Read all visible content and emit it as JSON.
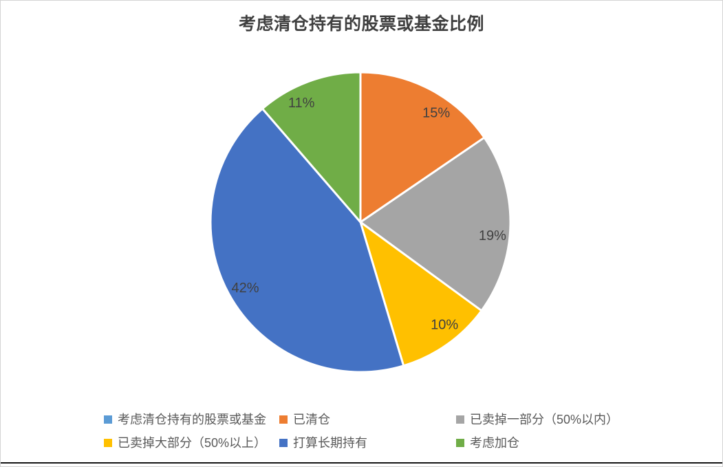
{
  "chart_data": {
    "type": "pie",
    "title": "考虑清仓持有的股票或基金比例",
    "series_name": "考虑清仓持有的股票或基金",
    "unit": "percent",
    "direction": "clockwise",
    "start_angle_deg": 0,
    "slices": [
      {
        "label": "已清仓",
        "value": 15,
        "display": "15%",
        "color": "#ED7D31"
      },
      {
        "label": "已卖掉一部分（50%以内）",
        "value": 19,
        "display": "19%",
        "color": "#A5A5A5"
      },
      {
        "label": "已卖掉大部分（50%以上）",
        "value": 10,
        "display": "10%",
        "color": "#FFC000"
      },
      {
        "label": "打算长期持有",
        "value": 42,
        "display": "42%",
        "color": "#4472C4"
      },
      {
        "label": "考虑加仓",
        "value": 11,
        "display": "11%",
        "color": "#70AD47"
      }
    ],
    "legend": {
      "position": "bottom",
      "items": [
        {
          "label": "考虑清仓持有的股票或基金",
          "color": "#5B9BD5"
        },
        {
          "label": "已清仓",
          "color": "#ED7D31"
        },
        {
          "label": "已卖掉一部分（50%以内）",
          "color": "#A5A5A5"
        },
        {
          "label": "已卖掉大部分（50%以上）",
          "color": "#FFC000"
        },
        {
          "label": "打算长期持有",
          "color": "#4472C4"
        },
        {
          "label": "考虑加仓",
          "color": "#70AD47"
        }
      ]
    },
    "colors": {
      "title_text": "#3f3f3f",
      "slice_label_text": "#404040",
      "legend_text": "#595959",
      "slice_separator": "#ffffff",
      "frame_border": "#d4d4d4",
      "bottom_rule": "#151515",
      "background": "#ffffff"
    }
  }
}
